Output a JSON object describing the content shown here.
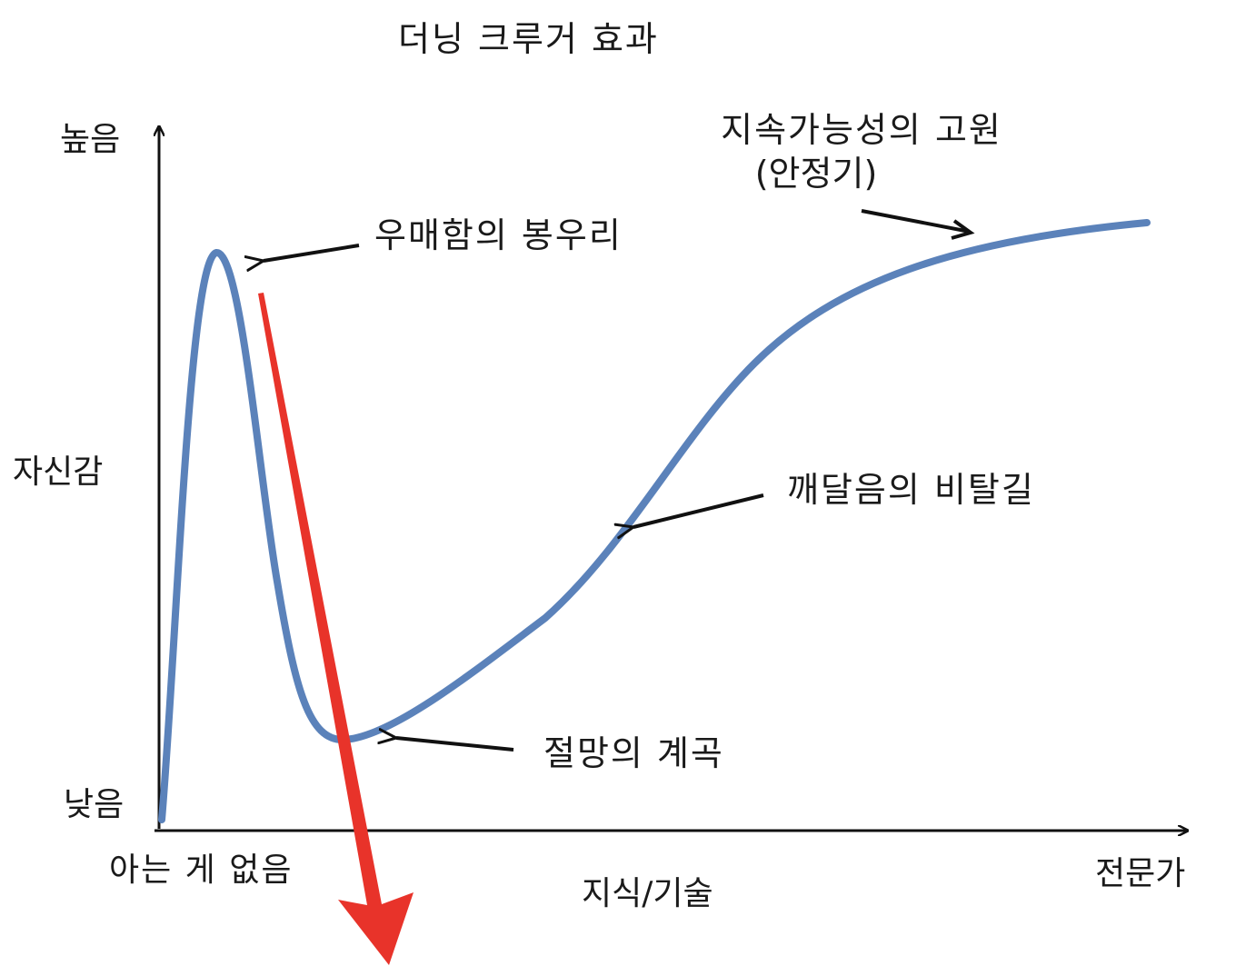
{
  "title": "더닝 크루거 효과",
  "y_axis": {
    "label": "자신감",
    "high": "높음",
    "low": "낮음"
  },
  "x_axis": {
    "label": "지식/기술",
    "start": "아는 게 없음",
    "end": "전문가"
  },
  "annotations": {
    "peak": "우매함의 봉우리",
    "valley": "절망의 계곡",
    "slope": "깨달음의 비탈길",
    "plateau_line1": "지속가능성의 고원",
    "plateau_line2": "(안정기)"
  },
  "colors": {
    "curve": "#5b82ba",
    "axis": "#111111",
    "pointer_arrows": "#111111",
    "overlay_arrow": "#e8332a"
  }
}
